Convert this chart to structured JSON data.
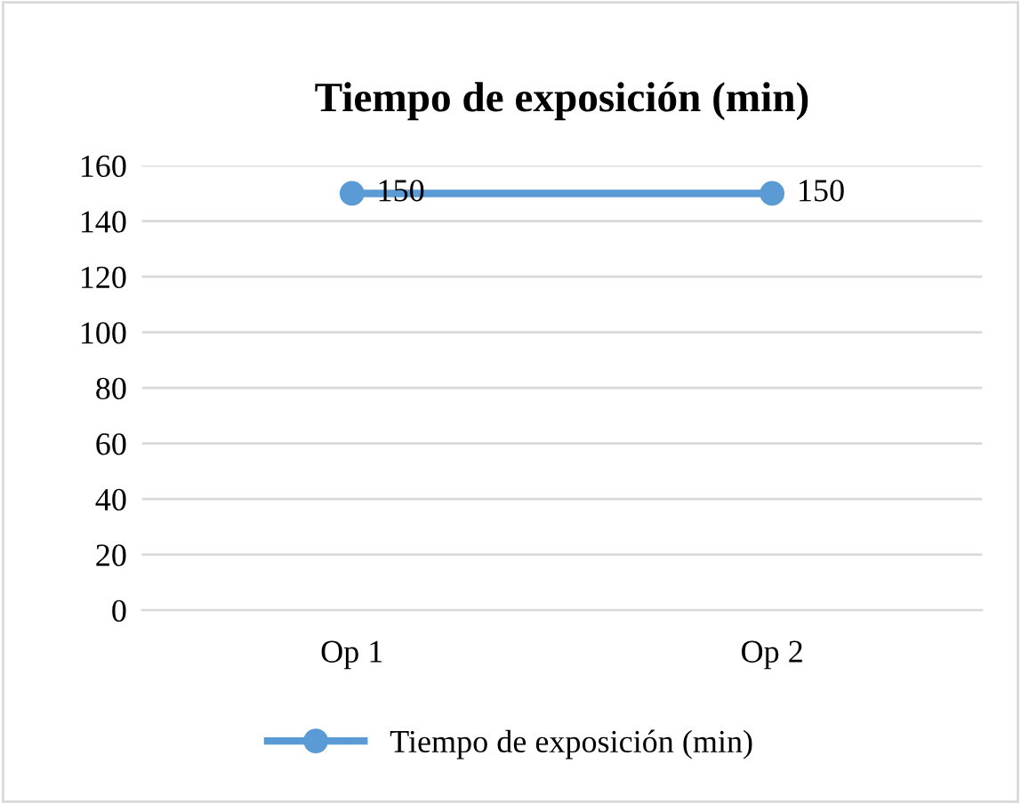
{
  "chart_data": {
    "type": "line",
    "title": "Tiempo de exposición (min)",
    "categories": [
      "Op 1",
      "Op 2"
    ],
    "series": [
      {
        "name": "Tiempo de exposición (min)",
        "color": "#5b9bd5",
        "values": [
          150,
          150
        ]
      }
    ],
    "ylim": [
      0,
      160
    ],
    "yticks": [
      0,
      20,
      40,
      60,
      80,
      100,
      120,
      140,
      160
    ],
    "grid": "y",
    "legend": "bottom",
    "marker": "circle",
    "line_style": "solid",
    "data_labels": true
  }
}
